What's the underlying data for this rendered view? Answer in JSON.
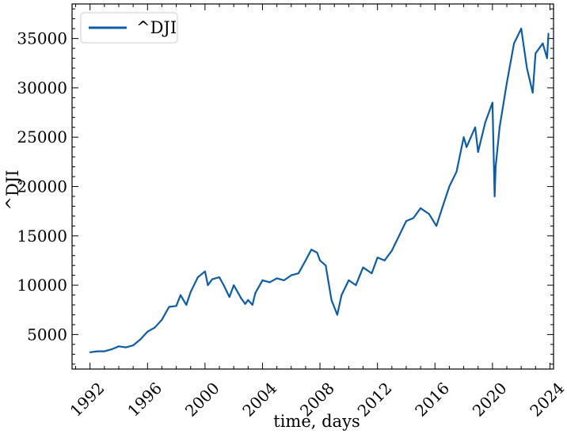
{
  "chart_data": {
    "type": "line",
    "title": "",
    "xlabel": "time, days",
    "ylabel": "^DJI",
    "xlim": [
      1990.75,
      2024.25
    ],
    "ylim": [
      1500,
      38500
    ],
    "x_ticks": [
      1992,
      1996,
      2000,
      2004,
      2008,
      2012,
      2016,
      2020,
      2024
    ],
    "x_tick_labels": [
      "1992",
      "1996",
      "2000",
      "2004",
      "2008",
      "2012",
      "2016",
      "2020",
      "2024"
    ],
    "y_ticks": [
      5000,
      10000,
      15000,
      20000,
      25000,
      30000,
      35000
    ],
    "y_tick_labels": [
      "5000",
      "10000",
      "15000",
      "20000",
      "25000",
      "30000",
      "35000"
    ],
    "legend": {
      "position": "top-left",
      "entries": [
        "^DJI"
      ]
    },
    "grid": false,
    "colors": {
      "series": "#0c5da5"
    },
    "series": [
      {
        "name": "^DJI",
        "x": [
          1992.0,
          1992.5,
          1993.0,
          1993.5,
          1994.0,
          1994.5,
          1995.0,
          1995.5,
          1996.0,
          1996.5,
          1997.0,
          1997.5,
          1998.0,
          1998.3,
          1998.7,
          1999.0,
          1999.5,
          2000.0,
          2000.2,
          2000.5,
          2001.0,
          2001.3,
          2001.7,
          2002.0,
          2002.5,
          2002.8,
          2003.0,
          2003.3,
          2003.5,
          2004.0,
          2004.5,
          2005.0,
          2005.5,
          2006.0,
          2006.5,
          2007.0,
          2007.4,
          2007.8,
          2008.0,
          2008.4,
          2008.8,
          2009.2,
          2009.5,
          2010.0,
          2010.5,
          2011.0,
          2011.6,
          2012.0,
          2012.5,
          2013.0,
          2013.5,
          2014.0,
          2014.5,
          2015.0,
          2015.6,
          2016.1,
          2016.5,
          2017.0,
          2017.5,
          2018.0,
          2018.2,
          2018.5,
          2018.8,
          2019.0,
          2019.5,
          2020.0,
          2020.15,
          2020.22,
          2020.5,
          2021.0,
          2021.5,
          2022.0,
          2022.4,
          2022.8,
          2023.0,
          2023.5,
          2023.8,
          2023.9
        ],
        "values": [
          3200,
          3300,
          3300,
          3500,
          3800,
          3700,
          3900,
          4500,
          5300,
          5700,
          6500,
          7800,
          7900,
          9000,
          8000,
          9300,
          10800,
          11400,
          10000,
          10600,
          10800,
          10000,
          8800,
          10000,
          8700,
          8100,
          8500,
          8000,
          9200,
          10500,
          10300,
          10700,
          10500,
          11000,
          11200,
          12500,
          13600,
          13300,
          12500,
          12000,
          8500,
          7000,
          9000,
          10500,
          10000,
          11800,
          11200,
          12800,
          12500,
          13500,
          15000,
          16500,
          16800,
          17800,
          17200,
          16000,
          17800,
          20000,
          21500,
          25000,
          24000,
          25000,
          26000,
          23500,
          26500,
          28500,
          19000,
          22000,
          26000,
          30500,
          34500,
          36000,
          32000,
          29500,
          33500,
          34500,
          33000,
          35500
        ]
      }
    ]
  }
}
